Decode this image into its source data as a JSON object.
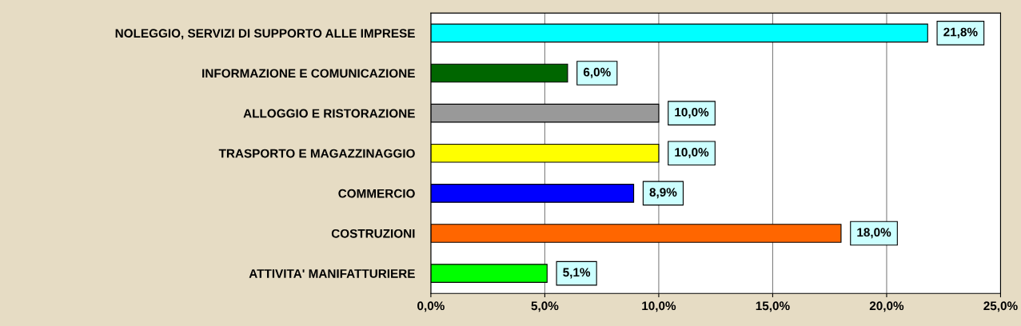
{
  "chart_data": {
    "type": "bar",
    "orientation": "horizontal",
    "categories": [
      "NOLEGGIO, SERVIZI DI SUPPORTO ALLE IMPRESE",
      "INFORMAZIONE E COMUNICAZIONE",
      "ALLOGGIO E RISTORAZIONE",
      "TRASPORTO E MAGAZZINAGGIO",
      "COMMERCIO",
      "COSTRUZIONI",
      "ATTIVITA' MANIFATTURIERE"
    ],
    "values": [
      21.8,
      6.0,
      10.0,
      10.0,
      8.9,
      18.0,
      5.1
    ],
    "colors": [
      "#00ffff",
      "#006600",
      "#999999",
      "#ffff00",
      "#0000ff",
      "#ff6600",
      "#00ff00"
    ],
    "value_labels": [
      "21,8%",
      "6,0%",
      "10,0%",
      "10,0%",
      "8,9%",
      "18,0%",
      "5,1%"
    ],
    "xlim": [
      0,
      25
    ],
    "xticks": [
      {
        "value": 0,
        "label": "0,0%"
      },
      {
        "value": 5,
        "label": "5,0%"
      },
      {
        "value": 10,
        "label": "10,0%"
      },
      {
        "value": 15,
        "label": "15,0%"
      },
      {
        "value": 20,
        "label": "20,0%"
      },
      {
        "value": 25,
        "label": "25,0%"
      }
    ],
    "grid": "x"
  }
}
